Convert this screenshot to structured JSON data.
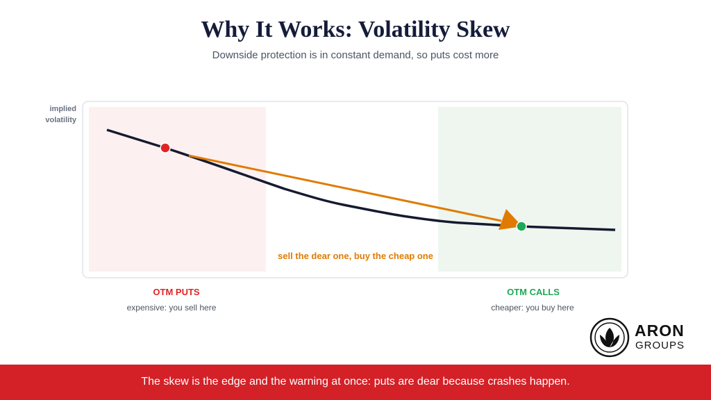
{
  "header": {
    "title": "Why It Works: Volatility Skew",
    "subtitle": "Downside protection is in constant demand, so puts cost more"
  },
  "diagram": {
    "y_axis_label": "implied volatility",
    "arrow_label": "sell the dear one, buy the cheap one",
    "zones": [
      {
        "label": "OTM PUTS",
        "caption": "expensive: you sell here"
      },
      {
        "label": "OTM CALLS",
        "caption": "cheaper: you buy here"
      }
    ]
  },
  "logo": {
    "name": "ARON",
    "tagline": "GROUPS"
  },
  "footer": {
    "text": "The skew is the edge and the warning at once: puts are dear because crashes happen."
  }
}
